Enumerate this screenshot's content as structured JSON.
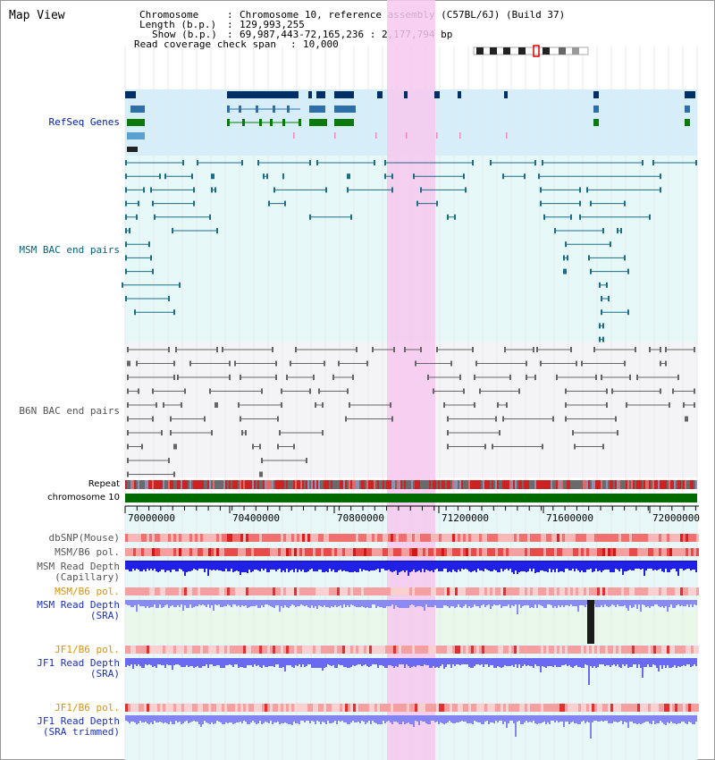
{
  "app_title": "Map View",
  "info": {
    "chromosome_label": "Chromosome",
    "chromosome_value": "Chromosome 10, reference assembly (C57BL/6J) (Build 37)",
    "length_label": "Length (b.p.)",
    "length_value": "129,993,255",
    "show_label": "Show (b.p.)",
    "show_value": "69,987,443-72,165,236 : 2,177,794 bp",
    "coverage_label": "Read coverage check span",
    "coverage_value": "10,000"
  },
  "tracks": {
    "refseq": "RefSeq Genes",
    "msm_bac": "MSM BAC end pairs",
    "b6n_bac": "B6N BAC end pairs",
    "repeat": "Repeat",
    "chromosome": "chromosome 10",
    "dbsnp": "dbSNP(Mouse)",
    "msm_b6_pol": "MSM/B6 pol.",
    "msm_depth_cap_1": "MSM Read Depth",
    "msm_depth_cap_2": "(Capillary)",
    "msm_b6_pol_sra": "MSM/B6 pol.",
    "msm_depth_sra_1": "MSM Read Depth",
    "msm_depth_sra_2": "(SRA)",
    "jf1_b6_pol_1": "JF1/B6 pol.",
    "jf1_depth_1": "JF1 Read Depth",
    "jf1_depth_2": "(SRA)",
    "jf1_b6_pol_2": "JF1/B6 pol.",
    "jf1_depth_trim_1": "JF1 Read Depth",
    "jf1_depth_trim_2": "(SRA trimmed)"
  },
  "axis": {
    "ticks": [
      "70000000",
      "70400000",
      "70800000",
      "71200000",
      "71600000",
      "72000000"
    ]
  },
  "colors": {
    "refseq_label": "#00209a",
    "msm_label": "#00647a",
    "b6n_label": "#555555",
    "orange_label": "#e09000",
    "blue_label": "#1a30c0",
    "highlight": "#f7c8ef",
    "chromosome_bar": "#006a00"
  }
}
